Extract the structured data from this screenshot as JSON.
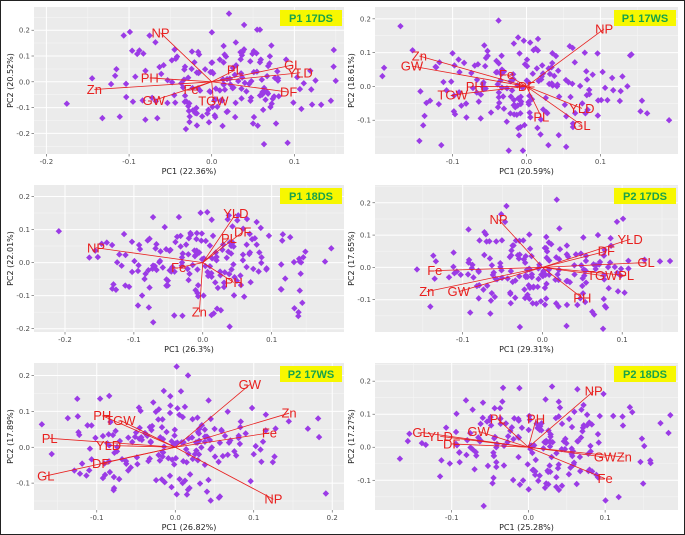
{
  "chart_data": [
    {
      "type": "scatter",
      "panel_label": "P1 17DS",
      "xlabel": "PC1 (22.36%)",
      "ylabel": "PC2 (20.52%)",
      "xlim": [
        -0.215,
        0.16
      ],
      "ylim": [
        -0.28,
        0.29
      ],
      "xticks": [
        -0.2,
        -0.1,
        0.0,
        0.1
      ],
      "xtick_labels": [
        "-0.2",
        "-0.1",
        "0.0",
        "0.1"
      ],
      "yticks": [
        -0.2,
        -0.1,
        0.0,
        0.1,
        0.2
      ],
      "ytick_labels": [
        "-0.2",
        "-0.1",
        "0.0",
        "0.1",
        "0.2"
      ],
      "loadings": [
        {
          "name": "NP",
          "x": -0.062,
          "y": 0.19
        },
        {
          "name": "Zn",
          "x": -0.142,
          "y": -0.03
        },
        {
          "name": "PH",
          "x": -0.075,
          "y": 0.015
        },
        {
          "name": "GW",
          "x": -0.07,
          "y": -0.072
        },
        {
          "name": "Fe",
          "x": -0.025,
          "y": -0.03
        },
        {
          "name": "TGW",
          "x": 0.002,
          "y": -0.075
        },
        {
          "name": "PL",
          "x": 0.028,
          "y": 0.045
        },
        {
          "name": "GL",
          "x": 0.098,
          "y": 0.065
        },
        {
          "name": "YLD",
          "x": 0.107,
          "y": 0.035
        },
        {
          "name": "DF",
          "x": 0.093,
          "y": -0.04
        }
      ]
    },
    {
      "type": "scatter",
      "panel_label": "P1 17WS",
      "xlabel": "PC1 (20.59%)",
      "ylabel": "PC2 (18.61%)",
      "xlim": [
        -0.205,
        0.205
      ],
      "ylim": [
        -0.2,
        0.235
      ],
      "xticks": [
        -0.1,
        0.0,
        0.1
      ],
      "xtick_labels": [
        "-0.1",
        "0.0",
        "0.1"
      ],
      "yticks": [
        -0.1,
        0.0,
        0.1,
        0.2
      ],
      "ytick_labels": [
        "-0.1",
        "0.0",
        "0.1",
        "0.2"
      ],
      "loadings": [
        {
          "name": "NP",
          "x": 0.105,
          "y": 0.17
        },
        {
          "name": "Zn",
          "x": -0.145,
          "y": 0.09
        },
        {
          "name": "GW",
          "x": -0.155,
          "y": 0.06
        },
        {
          "name": "Fe",
          "x": -0.027,
          "y": 0.035
        },
        {
          "name": "PH",
          "x": -0.07,
          "y": -0.0
        },
        {
          "name": "TGW",
          "x": -0.1,
          "y": -0.025
        },
        {
          "name": "DF",
          "x": 0.0,
          "y": 0.0
        },
        {
          "name": "PL",
          "x": 0.02,
          "y": -0.09
        },
        {
          "name": "YLD",
          "x": 0.075,
          "y": -0.065
        },
        {
          "name": "GL",
          "x": 0.075,
          "y": -0.115
        }
      ]
    },
    {
      "type": "scatter",
      "panel_label": "P1 18DS",
      "xlabel": "PC1 (26.3%)",
      "ylabel": "PC2 (22.01%)",
      "xlim": [
        -0.245,
        0.205
      ],
      "ylim": [
        -0.21,
        0.235
      ],
      "xticks": [
        -0.2,
        -0.1,
        0.0,
        0.1
      ],
      "xtick_labels": [
        "-0.2",
        "-0.1",
        "0.0",
        "0.1"
      ],
      "yticks": [
        -0.2,
        -0.1,
        0.0,
        0.1,
        0.2
      ],
      "ytick_labels": [
        "-0.2",
        "-0.1",
        "0.0",
        "0.1",
        "0.2"
      ],
      "loadings": [
        {
          "name": "NP",
          "x": -0.155,
          "y": 0.045
        },
        {
          "name": "Fe",
          "x": -0.035,
          "y": -0.015
        },
        {
          "name": "YLD",
          "x": 0.048,
          "y": 0.148
        },
        {
          "name": "DF",
          "x": 0.058,
          "y": 0.093
        },
        {
          "name": "PL",
          "x": 0.038,
          "y": 0.073
        },
        {
          "name": "PH",
          "x": 0.045,
          "y": -0.06
        },
        {
          "name": "Zn",
          "x": -0.005,
          "y": -0.15
        }
      ]
    },
    {
      "type": "scatter",
      "panel_label": "P2 17DS",
      "xlabel": "PC1 (29.31%)",
      "ylabel": "PC2 (17.65%)",
      "xlim": [
        -0.21,
        0.17
      ],
      "ylim": [
        -0.2,
        0.255
      ],
      "xticks": [
        -0.1,
        0.0,
        0.1
      ],
      "xtick_labels": [
        "-0.1",
        "0.0",
        "0.1"
      ],
      "yticks": [
        -0.1,
        0.0,
        0.1,
        0.2
      ],
      "ytick_labels": [
        "-0.1",
        "0.0",
        "0.1",
        "0.2"
      ],
      "loadings": [
        {
          "name": "NP",
          "x": -0.055,
          "y": 0.148
        },
        {
          "name": "YLD",
          "x": 0.11,
          "y": 0.087
        },
        {
          "name": "DF",
          "x": 0.08,
          "y": 0.05
        },
        {
          "name": "GL",
          "x": 0.13,
          "y": 0.015
        },
        {
          "name": "TGW",
          "x": 0.075,
          "y": -0.025
        },
        {
          "name": "PL",
          "x": 0.105,
          "y": -0.025
        },
        {
          "name": "Fe",
          "x": -0.135,
          "y": -0.01
        },
        {
          "name": "Zn",
          "x": -0.145,
          "y": -0.075
        },
        {
          "name": "GW",
          "x": -0.105,
          "y": -0.075
        },
        {
          "name": "PH",
          "x": 0.05,
          "y": -0.095
        }
      ]
    },
    {
      "type": "scatter",
      "panel_label": "P2 17WS",
      "xlabel": "PC1 (26.82%)",
      "ylabel": "PC2 (17.89%)",
      "xlim": [
        -0.18,
        0.215
      ],
      "ylim": [
        -0.175,
        0.235
      ],
      "xticks": [
        -0.1,
        0.0,
        0.1,
        0.2
      ],
      "xtick_labels": [
        "-0.1",
        "0.0",
        "0.1",
        "0.2"
      ],
      "yticks": [
        -0.1,
        0.0,
        0.1,
        0.2
      ],
      "ytick_labels": [
        "-0.1",
        "0.0",
        "0.1",
        "0.2"
      ],
      "loadings": [
        {
          "name": "GW",
          "x": 0.095,
          "y": 0.175
        },
        {
          "name": "Zn",
          "x": 0.145,
          "y": 0.095
        },
        {
          "name": "Fe",
          "x": 0.12,
          "y": 0.04
        },
        {
          "name": "PH",
          "x": -0.093,
          "y": 0.088
        },
        {
          "name": "TGW",
          "x": -0.07,
          "y": 0.075
        },
        {
          "name": "PL",
          "x": -0.16,
          "y": 0.025
        },
        {
          "name": "YLD",
          "x": -0.085,
          "y": 0.005
        },
        {
          "name": "DF",
          "x": -0.095,
          "y": -0.045
        },
        {
          "name": "GL",
          "x": -0.165,
          "y": -0.08
        },
        {
          "name": "NP",
          "x": 0.125,
          "y": -0.145
        }
      ]
    },
    {
      "type": "scatter",
      "panel_label": "P2 18DS",
      "xlabel": "PC1 (25.28%)",
      "ylabel": "PC2 (17.27%)",
      "xlim": [
        -0.2,
        0.195
      ],
      "ylim": [
        -0.19,
        0.255
      ],
      "xticks": [
        -0.1,
        0.0,
        0.1
      ],
      "xtick_labels": [
        "-0.1",
        "0.0",
        "0.1"
      ],
      "yticks": [
        -0.1,
        0.0,
        0.1,
        0.2
      ],
      "ytick_labels": [
        "-0.1",
        "0.0",
        "0.1",
        "0.2"
      ],
      "loadings": [
        {
          "name": "NP",
          "x": 0.085,
          "y": 0.17
        },
        {
          "name": "GL",
          "x": -0.14,
          "y": 0.045
        },
        {
          "name": "YLD",
          "x": -0.115,
          "y": 0.033
        },
        {
          "name": "GW",
          "x": -0.065,
          "y": 0.048
        },
        {
          "name": "PL",
          "x": -0.04,
          "y": 0.085
        },
        {
          "name": "PH",
          "x": 0.01,
          "y": 0.085
        },
        {
          "name": "DF",
          "x": -0.1,
          "y": 0.01
        },
        {
          "name": "GW",
          "x": 0.1,
          "y": -0.03
        },
        {
          "name": "Zn",
          "x": 0.125,
          "y": -0.03
        },
        {
          "name": "Fe",
          "x": 0.1,
          "y": -0.095
        }
      ]
    }
  ]
}
